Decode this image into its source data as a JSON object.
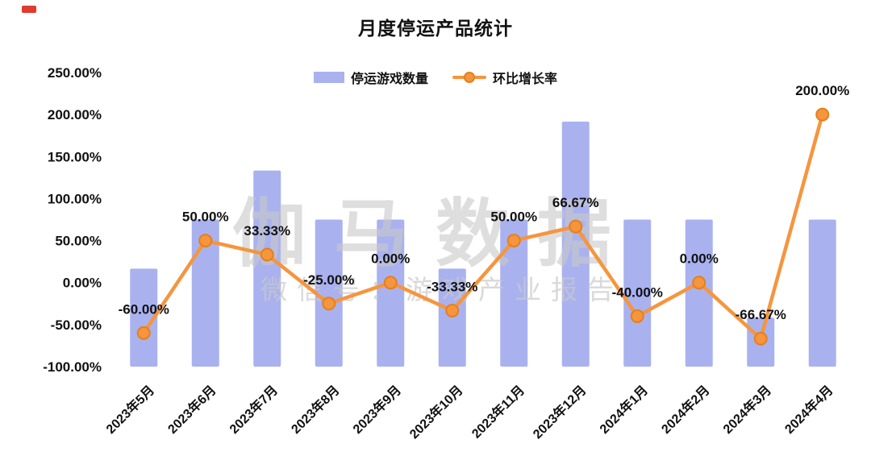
{
  "page": {
    "title": "月度停运产品统计"
  },
  "corner_mark_color": "#e23b2e",
  "legend": {
    "items": [
      {
        "label": "停运游戏数量",
        "type": "bar"
      },
      {
        "label": "环比增长率",
        "type": "line"
      }
    ]
  },
  "watermark": {
    "line1": "伽马数据",
    "line2": "微信号：游戏产业报告"
  },
  "chart_data": {
    "type": "combo-bar-line",
    "title": "月度停运产品统计",
    "categories": [
      "2023年5月",
      "2023年6月",
      "2023年7月",
      "2023年8月",
      "2023年9月",
      "2023年10月",
      "2023年11月",
      "2023年12月",
      "2024年1月",
      "2024年2月",
      "2024年3月",
      "2024年4月"
    ],
    "series": [
      {
        "name": "停运游戏数量",
        "type": "bar",
        "axis": "hidden-right",
        "axis_range": [
          0,
          30
        ],
        "values": [
          10,
          15,
          20,
          15,
          15,
          10,
          15,
          25,
          15,
          15,
          5,
          15
        ],
        "color": "#a9b2ef"
      },
      {
        "name": "环比增长率",
        "type": "line",
        "axis": "left",
        "values": [
          -60,
          50,
          33.33,
          -25,
          0,
          -33.33,
          50,
          66.67,
          -40,
          0,
          -66.67,
          200
        ],
        "point_labels": [
          "-60.00%",
          "50.00%",
          "33.33%",
          "-25.00%",
          "0.00%",
          "-33.33%",
          "50.00%",
          "66.67%",
          "-40.00%",
          "0.00%",
          "-66.67%",
          "200.00%"
        ],
        "color": "#f6953e",
        "marker_stroke": "#e2811c"
      }
    ],
    "y_axis": {
      "range": [
        -100,
        250
      ],
      "ticks": [
        250,
        200,
        150,
        100,
        50,
        0,
        -50,
        -100
      ],
      "tick_labels": [
        "250.00%",
        "200.00%",
        "150.00%",
        "100.00%",
        "50.00%",
        "0.00%",
        "-50.00%",
        "-100.00%"
      ]
    },
    "grid": false,
    "legend_position": "top-center",
    "label_color": "#111111",
    "watermark_color": "#c9c9c9"
  }
}
